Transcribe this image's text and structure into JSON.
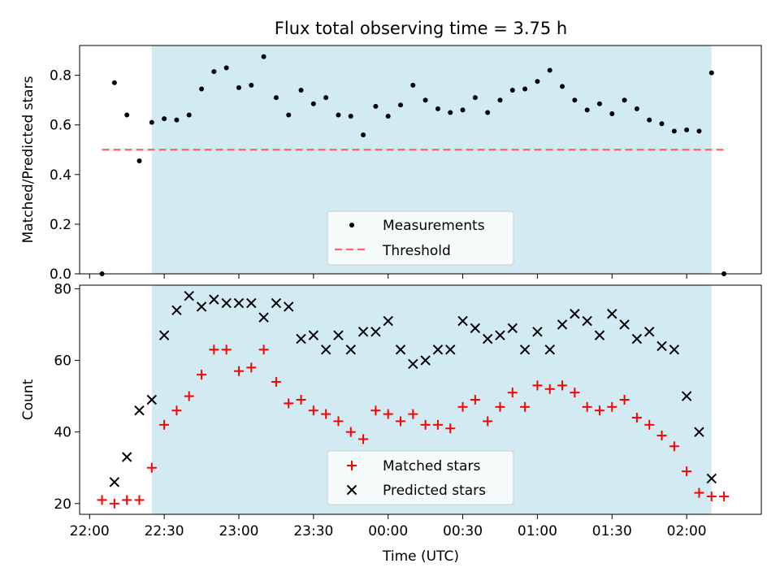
{
  "chart_data": {
    "title": "Flux total observing time = 3.75 h",
    "xlabel": "Time (UTC)",
    "x_tick_labels": [
      "22:00",
      "22:30",
      "23:00",
      "23:30",
      "00:00",
      "00:30",
      "01:00",
      "01:30",
      "02:00"
    ],
    "x_tick_minutes": [
      0,
      30,
      60,
      90,
      120,
      150,
      180,
      210,
      240
    ],
    "xlim_minutes": [
      -4,
      270
    ],
    "shaded_interval_minutes": [
      25,
      250
    ],
    "colors": {
      "shade": "#add8e6",
      "matched": "#ff0000",
      "predicted": "#000000",
      "threshold": "#ff6666",
      "measurement": "#000000"
    },
    "top": {
      "type": "scatter",
      "ylabel": "Matched/Predicted stars",
      "ylim": [
        0,
        0.92
      ],
      "y_ticks": [
        0.0,
        0.2,
        0.4,
        0.6,
        0.8
      ],
      "y_tick_labels": [
        "0.0",
        "0.2",
        "0.4",
        "0.6",
        "0.8"
      ],
      "threshold": {
        "value": 0.5,
        "x_range_minutes": [
          5,
          255
        ]
      },
      "legend": [
        "Measurements",
        "Threshold"
      ],
      "legend_position": "lower-center",
      "series": [
        {
          "name": "Measurements",
          "x": [
            5,
            10,
            15,
            20,
            25,
            30,
            35,
            40,
            45,
            50,
            55,
            60,
            65,
            70,
            75,
            80,
            85,
            90,
            95,
            100,
            105,
            110,
            115,
            120,
            125,
            130,
            135,
            140,
            145,
            150,
            155,
            160,
            165,
            170,
            175,
            180,
            185,
            190,
            195,
            200,
            205,
            210,
            215,
            220,
            225,
            230,
            235,
            240,
            245,
            250,
            255
          ],
          "y": [
            0.0,
            0.77,
            0.64,
            0.455,
            0.61,
            0.625,
            0.62,
            0.64,
            0.745,
            0.815,
            0.83,
            0.75,
            0.76,
            0.875,
            0.71,
            0.64,
            0.74,
            0.685,
            0.71,
            0.64,
            0.635,
            0.56,
            0.675,
            0.635,
            0.68,
            0.76,
            0.7,
            0.665,
            0.65,
            0.66,
            0.71,
            0.65,
            0.7,
            0.74,
            0.745,
            0.775,
            0.82,
            0.755,
            0.7,
            0.66,
            0.685,
            0.645,
            0.7,
            0.665,
            0.62,
            0.605,
            0.575,
            0.58,
            0.575,
            0.81,
            0.0
          ]
        }
      ]
    },
    "bottom": {
      "type": "scatter",
      "ylabel": "Count",
      "ylim": [
        17,
        81
      ],
      "y_ticks": [
        20,
        40,
        60,
        80
      ],
      "y_tick_labels": [
        "20",
        "40",
        "60",
        "80"
      ],
      "legend": [
        "Matched stars",
        "Predicted stars"
      ],
      "legend_position": "lower-center",
      "series": [
        {
          "name": "Matched stars",
          "marker": "plus",
          "x": [
            5,
            10,
            15,
            20,
            25,
            30,
            35,
            40,
            45,
            50,
            55,
            60,
            65,
            70,
            75,
            80,
            85,
            90,
            95,
            100,
            105,
            110,
            115,
            120,
            125,
            130,
            135,
            140,
            145,
            150,
            155,
            160,
            165,
            170,
            175,
            180,
            185,
            190,
            195,
            200,
            205,
            210,
            215,
            220,
            225,
            230,
            235,
            240,
            245,
            250,
            255
          ],
          "y": [
            21,
            20,
            21,
            21,
            30,
            42,
            46,
            50,
            56,
            63,
            63,
            57,
            58,
            63,
            54,
            48,
            49,
            46,
            45,
            43,
            40,
            38,
            46,
            45,
            43,
            45,
            42,
            42,
            41,
            47,
            49,
            43,
            47,
            51,
            47,
            53,
            52,
            53,
            51,
            47,
            46,
            47,
            49,
            44,
            42,
            39,
            36,
            29,
            23,
            22,
            22
          ]
        },
        {
          "name": "Predicted stars",
          "marker": "x",
          "x": [
            10,
            15,
            20,
            25,
            30,
            35,
            40,
            45,
            50,
            55,
            60,
            65,
            70,
            75,
            80,
            85,
            90,
            95,
            100,
            105,
            110,
            115,
            120,
            125,
            130,
            135,
            140,
            145,
            150,
            155,
            160,
            165,
            170,
            175,
            180,
            185,
            190,
            195,
            200,
            205,
            210,
            215,
            220,
            225,
            230,
            235,
            240,
            245,
            250
          ],
          "y": [
            26,
            33,
            46,
            49,
            67,
            74,
            78,
            75,
            77,
            76,
            76,
            76,
            72,
            76,
            75,
            66,
            67,
            63,
            67,
            63,
            68,
            68,
            71,
            63,
            59,
            60,
            63,
            63,
            71,
            69,
            66,
            67,
            69,
            63,
            68,
            63,
            70,
            73,
            71,
            67,
            73,
            70,
            66,
            68,
            64,
            63,
            50,
            40,
            27
          ]
        }
      ]
    }
  }
}
